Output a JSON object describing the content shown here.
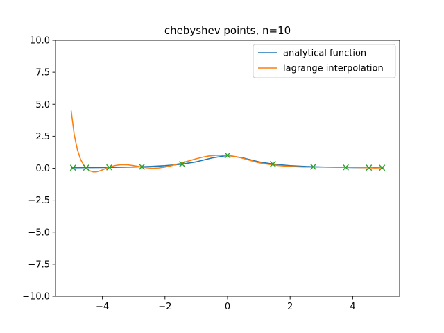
{
  "chart_data": {
    "type": "line",
    "title": "chebyshev points, n=10",
    "xlabel": "",
    "ylabel": "",
    "xlim": [
      -5.5,
      5.5
    ],
    "ylim": [
      -10,
      10
    ],
    "grid": false,
    "legend_position": "top-right",
    "x_ticks": [
      {
        "value": -4,
        "label": "−4"
      },
      {
        "value": -2,
        "label": "−2"
      },
      {
        "value": 0,
        "label": "0"
      },
      {
        "value": 2,
        "label": "2"
      },
      {
        "value": 4,
        "label": "4"
      }
    ],
    "y_ticks": [
      {
        "value": 10,
        "label": "10.0"
      },
      {
        "value": 7.5,
        "label": "7.5"
      },
      {
        "value": 5,
        "label": "5.0"
      },
      {
        "value": 2.5,
        "label": "2.5"
      },
      {
        "value": 0,
        "label": "0.0"
      },
      {
        "value": -2.5,
        "label": "−2.5"
      },
      {
        "value": -5,
        "label": "−5.0"
      },
      {
        "value": -7.5,
        "label": "−7.5"
      },
      {
        "value": -10,
        "label": "−10.0"
      }
    ],
    "series": [
      {
        "name": "analytical function",
        "color": "#1f77b4",
        "style": "line",
        "x": [
          -5.0,
          -4.5,
          -4.0,
          -3.5,
          -3.0,
          -2.5,
          -2.0,
          -1.5,
          -1.0,
          -0.5,
          0.0,
          0.5,
          1.0,
          1.5,
          2.0,
          2.5,
          3.0,
          3.5,
          4.0,
          4.5,
          5.0
        ],
        "y": [
          0.038,
          0.047,
          0.059,
          0.075,
          0.1,
          0.138,
          0.2,
          0.308,
          0.5,
          0.8,
          1.0,
          0.8,
          0.5,
          0.308,
          0.2,
          0.138,
          0.1,
          0.075,
          0.059,
          0.047,
          0.038
        ]
      },
      {
        "name": "lagrange interpolation",
        "color": "#ff7f0e",
        "style": "line",
        "x": [
          -5.0,
          -4.9,
          -4.8,
          -4.7,
          -4.6,
          -4.5,
          -4.4,
          -4.3,
          -4.2,
          -4.1,
          -4.0,
          -3.9,
          -3.8,
          -3.6,
          -3.4,
          -3.2,
          -3.0,
          -2.8,
          -2.6,
          -2.4,
          -2.2,
          -2.0,
          -1.8,
          -1.6,
          -1.4,
          -1.2,
          -1.0,
          -0.8,
          -0.6,
          -0.4,
          -0.2,
          0.0,
          0.2,
          0.4,
          0.6,
          0.8,
          1.0,
          1.2,
          1.4,
          1.6,
          2.0,
          2.4,
          2.8,
          3.2,
          3.6,
          4.0,
          4.4,
          4.7,
          5.0
        ],
        "y": [
          4.5,
          2.6,
          1.45,
          0.7,
          0.25,
          -0.03,
          -0.2,
          -0.28,
          -0.28,
          -0.22,
          -0.13,
          -0.03,
          0.07,
          0.21,
          0.28,
          0.27,
          0.2,
          0.12,
          0.04,
          0.0,
          0.02,
          0.09,
          0.2,
          0.33,
          0.46,
          0.6,
          0.74,
          0.86,
          0.95,
          1.0,
          1.01,
          0.99,
          0.93,
          0.83,
          0.7,
          0.56,
          0.43,
          0.34,
          0.28,
          0.22,
          0.14,
          0.1,
          0.09,
          0.09,
          0.08,
          0.07,
          0.05,
          0.02,
          0.04
        ]
      },
      {
        "name": "",
        "color": "#2ca02c",
        "style": "markers",
        "marker": "x",
        "x": [
          -4.94,
          -4.52,
          -3.78,
          -2.74,
          -1.45,
          0.0,
          1.45,
          2.74,
          3.78,
          4.52,
          4.94
        ],
        "y": [
          0.039,
          0.047,
          0.065,
          0.117,
          0.323,
          1.0,
          0.323,
          0.117,
          0.065,
          0.047,
          0.039
        ]
      }
    ]
  }
}
